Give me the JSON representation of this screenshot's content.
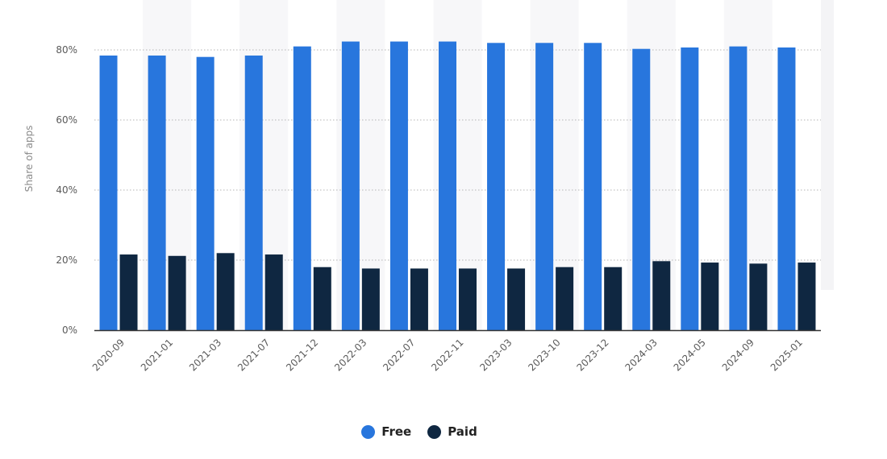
{
  "chart_data": {
    "type": "bar",
    "ylabel": "Share of apps",
    "y_ticks": [
      "0%",
      "20%",
      "40%",
      "60%",
      "80%"
    ],
    "ylim": [
      0,
      85
    ],
    "grid": true,
    "legend_position": "bottom-center",
    "categories": [
      "2020-09",
      "2021-01",
      "2021-03",
      "2021-07",
      "2021-12",
      "2022-03",
      "2022-07",
      "2022-11",
      "2023-03",
      "2023-10",
      "2023-12",
      "2024-03",
      "2024-05",
      "2024-09",
      "2025-01"
    ],
    "series": [
      {
        "name": "Free",
        "color": "#2876dd",
        "values": [
          78.4,
          78.4,
          78.0,
          78.4,
          81.0,
          82.4,
          82.4,
          82.4,
          82.0,
          82.0,
          82.0,
          80.3,
          80.7,
          81.0,
          80.7
        ]
      },
      {
        "name": "Paid",
        "color": "#0f2741",
        "values": [
          21.6,
          21.2,
          22.0,
          21.6,
          18.0,
          17.6,
          17.6,
          17.6,
          17.6,
          18.0,
          18.0,
          19.7,
          19.3,
          19.0,
          19.3
        ]
      }
    ]
  }
}
